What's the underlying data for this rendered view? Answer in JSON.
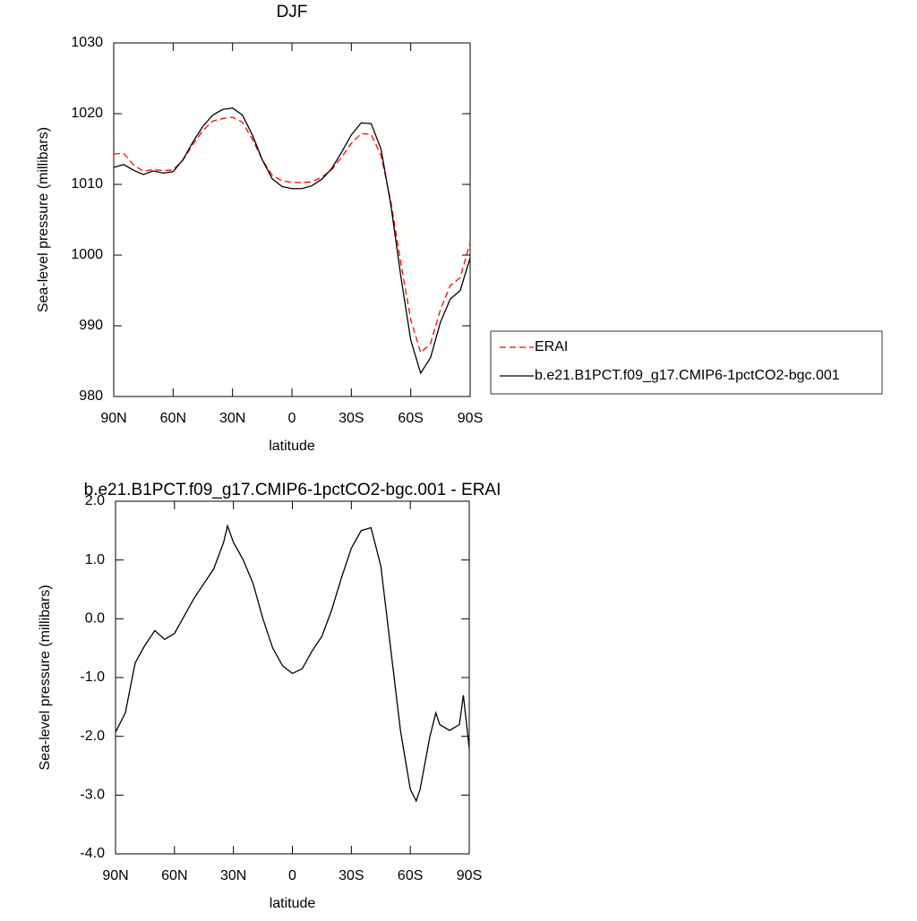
{
  "chart_data": [
    {
      "type": "line",
      "title": "DJF",
      "xlabel": "latitude",
      "ylabel": "Sea-level pressure (millibars)",
      "x": [
        90,
        85,
        80,
        75,
        70,
        65,
        60,
        55,
        50,
        45,
        40,
        35,
        30,
        25,
        20,
        15,
        10,
        5,
        0,
        -5,
        -10,
        -15,
        -20,
        -25,
        -30,
        -35,
        -40,
        -45,
        -50,
        -55,
        -60,
        -65,
        -70,
        -75,
        -80,
        -85,
        -90
      ],
      "xlim": [
        90,
        -90
      ],
      "xticks": [
        {
          "value": 90,
          "label": "90N"
        },
        {
          "value": 60,
          "label": "60N"
        },
        {
          "value": 30,
          "label": "30N"
        },
        0,
        {
          "value": -30,
          "label": "30S"
        },
        {
          "value": -60,
          "label": "60S"
        },
        {
          "value": -90,
          "label": "90S"
        }
      ],
      "ylim": [
        980,
        1030
      ],
      "yticks": [
        980,
        990,
        1000,
        1010,
        1020,
        1030
      ],
      "legend": "right",
      "series": [
        {
          "name": "ERAI",
          "color": "#ff0000",
          "linestyle": "dashed",
          "values": [
            1014.3,
            1014.4,
            1012.75,
            1011.85,
            1012.1,
            1011.95,
            1012.05,
            1013.45,
            1015.65,
            1017.6,
            1018.95,
            1019.3,
            1019.5,
            1018.8,
            1016.4,
            1013.5,
            1011.3,
            1010.5,
            1010.3,
            1010.25,
            1010.35,
            1011.0,
            1012.05,
            1013.8,
            1015.8,
            1017.2,
            1017.05,
            1014.1,
            1007.5,
            998.9,
            990.9,
            986.2,
            987.5,
            992.3,
            995.7,
            996.8,
            1001.8
          ]
        },
        {
          "name": "b.e21.B1PCT.f09_g17.CMIP6-1pctCO2-bgc.001",
          "color": "#000000",
          "linestyle": "solid",
          "values": [
            1012.4,
            1012.8,
            1012.0,
            1011.4,
            1011.9,
            1011.6,
            1011.8,
            1013.5,
            1016.0,
            1018.2,
            1019.8,
            1020.6,
            1020.8,
            1019.8,
            1017.0,
            1013.5,
            1010.8,
            1009.7,
            1009.4,
            1009.4,
            1009.8,
            1010.7,
            1012.2,
            1014.5,
            1017.0,
            1018.7,
            1018.6,
            1015.0,
            1007.0,
            997.0,
            988.0,
            983.3,
            985.5,
            990.5,
            993.8,
            995.0,
            999.6
          ]
        }
      ]
    },
    {
      "type": "line",
      "title": "b.e21.B1PCT.f09_g17.CMIP6-1pctCO2-bgc.001 - ERAI",
      "xlabel": "latitude",
      "ylabel": "Sea-level pressure (millibars)",
      "x": [
        90,
        85,
        80,
        75,
        70,
        65,
        60,
        55,
        50,
        45,
        40,
        35,
        33,
        30,
        25,
        20,
        15,
        10,
        5,
        0,
        -5,
        -10,
        -15,
        -20,
        -25,
        -30,
        -35,
        -40,
        -45,
        -50,
        -55,
        -60,
        -63,
        -65,
        -70,
        -73,
        -75,
        -80,
        -85,
        -87,
        -90
      ],
      "xlim": [
        90,
        -90
      ],
      "xticks": [
        {
          "value": 90,
          "label": "90N"
        },
        {
          "value": 60,
          "label": "60N"
        },
        {
          "value": 30,
          "label": "30N"
        },
        0,
        {
          "value": -30,
          "label": "30S"
        },
        {
          "value": -60,
          "label": "60S"
        },
        {
          "value": -90,
          "label": "90S"
        }
      ],
      "ylim": [
        -4,
        2
      ],
      "yticks": [
        {
          "value": -4,
          "label": "-4.0"
        },
        {
          "value": -3,
          "label": "-3.0"
        },
        {
          "value": -2,
          "label": "-2.0"
        },
        {
          "value": -1,
          "label": "-1.0"
        },
        {
          "value": 0,
          "label": "0.0"
        },
        {
          "value": 1,
          "label": "1.0"
        },
        {
          "value": 2,
          "label": "2.0"
        }
      ],
      "series": [
        {
          "color": "#000000",
          "linestyle": "solid",
          "values": [
            -1.93,
            -1.6,
            -0.75,
            -0.45,
            -0.2,
            -0.35,
            -0.25,
            0.05,
            0.35,
            0.6,
            0.85,
            1.3,
            1.58,
            1.3,
            1.0,
            0.6,
            0.0,
            -0.5,
            -0.8,
            -0.93,
            -0.85,
            -0.55,
            -0.3,
            0.15,
            0.7,
            1.2,
            1.5,
            1.55,
            0.9,
            -0.5,
            -1.9,
            -2.9,
            -3.1,
            -2.9,
            -2.0,
            -1.6,
            -1.8,
            -1.9,
            -1.8,
            -1.3,
            -2.2
          ]
        }
      ]
    }
  ]
}
